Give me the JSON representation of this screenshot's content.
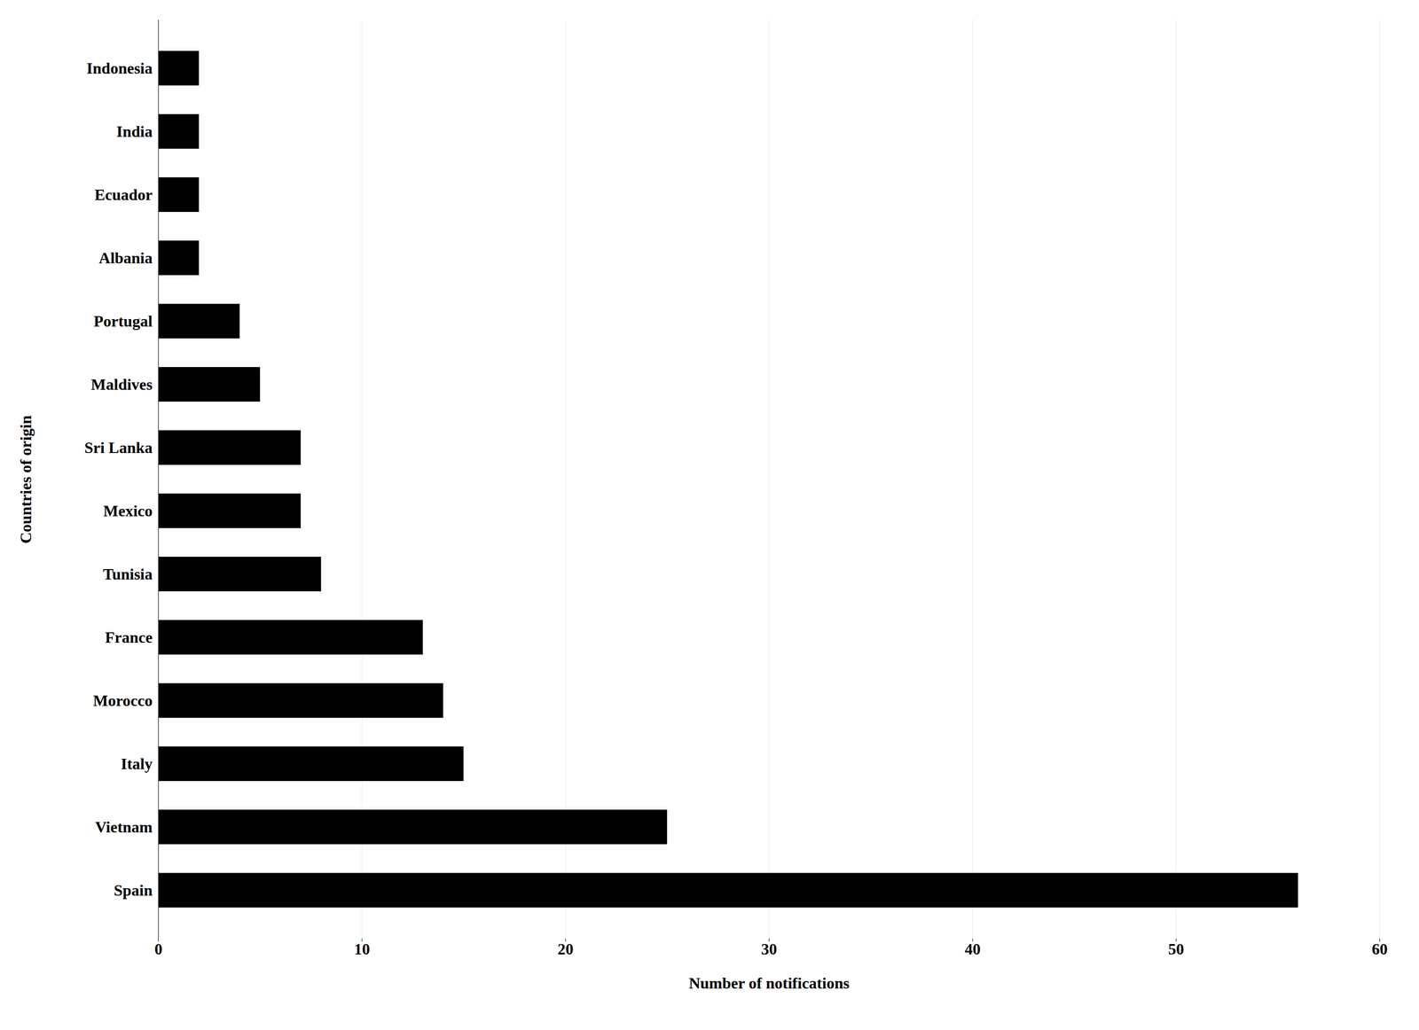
{
  "chart_data": {
    "type": "bar",
    "orientation": "horizontal",
    "categories": [
      "Spain",
      "Vietnam",
      "Italy",
      "Morocco",
      "France",
      "Tunisia",
      "Mexico",
      "Sri Lanka",
      "Maldives",
      "Portugal",
      "Albania",
      "Ecuador",
      "India",
      "Indonesia"
    ],
    "values": [
      56,
      25,
      15,
      14,
      13,
      8,
      7,
      7,
      5,
      4,
      2,
      2,
      2,
      2
    ],
    "xlabel": "Number of notifications",
    "ylabel": "Countries of origin",
    "xlim": [
      0,
      60
    ],
    "xticks": [
      0,
      10,
      20,
      30,
      40,
      50,
      60
    ],
    "grid": true
  }
}
